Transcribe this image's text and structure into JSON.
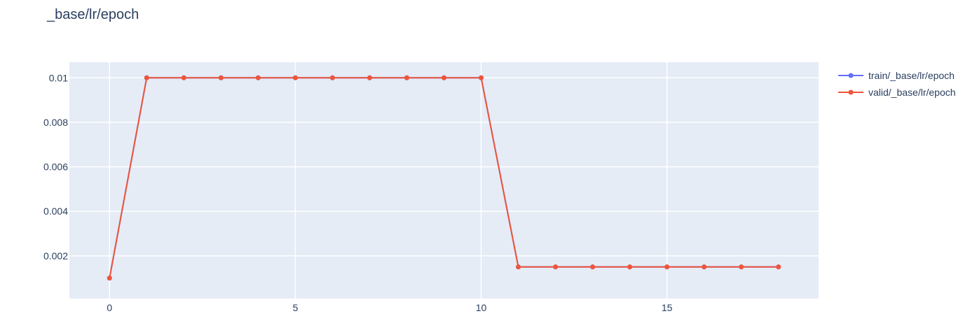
{
  "chart_data": {
    "type": "line",
    "title": "_base/lr/epoch",
    "xlabel": "",
    "ylabel": "",
    "x": [
      0,
      1,
      2,
      3,
      4,
      5,
      6,
      7,
      8,
      9,
      10,
      11,
      12,
      13,
      14,
      15,
      16,
      17,
      18
    ],
    "xlim": [
      -1.08,
      19.08
    ],
    "ylim": [
      8e-05,
      0.0107
    ],
    "x_ticks": [
      0,
      5,
      10,
      15
    ],
    "x_tick_labels": [
      "0",
      "5",
      "10",
      "15"
    ],
    "y_ticks": [
      0.002,
      0.004,
      0.006,
      0.008,
      0.01
    ],
    "y_tick_labels": [
      "0.002",
      "0.004",
      "0.006",
      "0.008",
      "0.01"
    ],
    "grid": true,
    "legend_position": "top-right",
    "plot_background": "#e5ecf6",
    "series": [
      {
        "name": "train/_base/lr/epoch",
        "color": "#636efa",
        "values": [
          0.001,
          0.01,
          0.01,
          0.01,
          0.01,
          0.01,
          0.01,
          0.01,
          0.01,
          0.01,
          0.01,
          0.0015,
          0.0015,
          0.0015,
          0.0015,
          0.0015,
          0.0015,
          0.0015,
          0.0015
        ]
      },
      {
        "name": "valid/_base/lr/epoch",
        "color": "#ef553b",
        "values": [
          0.001,
          0.01,
          0.01,
          0.01,
          0.01,
          0.01,
          0.01,
          0.01,
          0.01,
          0.01,
          0.01,
          0.0015,
          0.0015,
          0.0015,
          0.0015,
          0.0015,
          0.0015,
          0.0015,
          0.0015
        ]
      }
    ]
  }
}
